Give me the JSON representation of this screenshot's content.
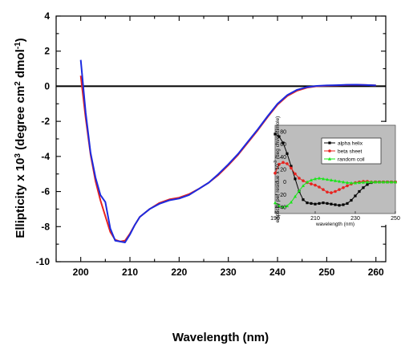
{
  "chart_data": [
    {
      "type": "line",
      "title": "",
      "xlabel": "Wavelength (nm)",
      "ylabel": {
        "prefix": "Ellipticity x 10",
        "exp": "3",
        "unit_open": " (degree cm",
        "unit_sq": "2",
        "unit_mid": " dmol",
        "unit_inv": "-1",
        "unit_close": ")"
      },
      "xlim": [
        195,
        262
      ],
      "ylim": [
        -10,
        4
      ],
      "xticks": [
        200,
        210,
        220,
        230,
        240,
        250,
        260
      ],
      "yticks": [
        4,
        2,
        0,
        -2,
        -4,
        -6,
        -8,
        -10
      ],
      "zero_line": true,
      "series": [
        {
          "color": "#e8231f",
          "x": [
            200,
            201,
            202,
            203,
            204,
            205,
            206,
            207,
            208,
            209,
            210,
            211,
            212,
            214,
            216,
            218,
            220,
            222,
            224,
            226,
            228,
            230,
            232,
            234,
            236,
            238,
            240,
            242,
            244,
            246,
            248,
            250,
            252,
            254,
            256,
            258,
            260
          ],
          "y": [
            0.6,
            -1.8,
            -3.9,
            -5.4,
            -6.5,
            -7.4,
            -8.3,
            -8.75,
            -8.85,
            -8.8,
            -8.4,
            -7.9,
            -7.45,
            -7.0,
            -6.65,
            -6.45,
            -6.35,
            -6.15,
            -5.85,
            -5.5,
            -5.05,
            -4.5,
            -3.9,
            -3.2,
            -2.5,
            -1.75,
            -1.05,
            -0.55,
            -0.25,
            -0.08,
            0.0,
            0.03,
            0.05,
            0.07,
            0.08,
            0.07,
            0.05
          ]
        },
        {
          "color": "#1c2be0",
          "x": [
            200,
            201,
            202,
            203,
            204,
            205,
            206,
            207,
            208,
            209,
            210,
            211,
            212,
            214,
            216,
            218,
            220,
            222,
            224,
            226,
            228,
            230,
            232,
            234,
            236,
            238,
            240,
            242,
            244,
            246,
            248,
            250,
            252,
            254,
            256,
            258,
            260
          ],
          "y": [
            1.5,
            -1.5,
            -3.8,
            -5.2,
            -6.2,
            -6.6,
            -8.1,
            -8.8,
            -8.85,
            -8.9,
            -8.45,
            -7.9,
            -7.45,
            -7.0,
            -6.7,
            -6.5,
            -6.4,
            -6.2,
            -5.85,
            -5.5,
            -5.0,
            -4.45,
            -3.85,
            -3.15,
            -2.45,
            -1.7,
            -1.0,
            -0.5,
            -0.2,
            -0.05,
            0.02,
            0.05,
            0.06,
            0.08,
            0.09,
            0.07,
            0.05
          ]
        }
      ]
    },
    {
      "type": "line",
      "title": "",
      "xlabel": "wavelength (nm)",
      "ylabel": {
        "prefix": "ellipticity per residue x 10",
        "exp": "-3",
        "unit": " (deg cm/decimole)"
      },
      "xlim": [
        190,
        250
      ],
      "ylim": [
        -50,
        90
      ],
      "xticks": [
        190,
        210,
        230,
        250
      ],
      "yticks": [
        80,
        60,
        40,
        20,
        0,
        -20,
        -40
      ],
      "background": "#bdbdbd",
      "legend_position": "top-right",
      "series": [
        {
          "name": "alpha helix",
          "color": "#000000",
          "marker": "square",
          "x": [
            190,
            192,
            194,
            196,
            198,
            200,
            202,
            204,
            206,
            208,
            210,
            212,
            214,
            216,
            218,
            220,
            222,
            224,
            226,
            228,
            230,
            232,
            234,
            236,
            238,
            240,
            242,
            244,
            246,
            248,
            250
          ],
          "y": [
            76,
            72,
            62,
            45,
            25,
            5,
            -15,
            -28,
            -33,
            -34,
            -35,
            -34,
            -33,
            -34,
            -35,
            -36,
            -37,
            -36,
            -34,
            -29,
            -22,
            -15,
            -9,
            -4,
            -1,
            0,
            0,
            0,
            0,
            0,
            0
          ]
        },
        {
          "name": "beta sheet",
          "color": "#e8231f",
          "marker": "circle",
          "x": [
            190,
            192,
            194,
            196,
            198,
            200,
            202,
            204,
            206,
            208,
            210,
            212,
            214,
            216,
            218,
            220,
            222,
            224,
            226,
            228,
            230,
            232,
            234,
            236,
            238,
            240,
            242,
            244,
            246,
            248,
            250
          ],
          "y": [
            14,
            28,
            31,
            29,
            22,
            13,
            6,
            2,
            -1,
            -3,
            -5,
            -8,
            -12,
            -16,
            -17,
            -15,
            -12,
            -9,
            -6,
            -3,
            -1,
            0,
            1,
            1,
            0,
            0,
            0,
            0,
            0,
            0,
            0
          ]
        },
        {
          "name": "random coil",
          "color": "#19e619",
          "marker": "triangle",
          "x": [
            190,
            192,
            194,
            196,
            198,
            200,
            202,
            204,
            206,
            208,
            210,
            212,
            214,
            216,
            218,
            220,
            222,
            224,
            226,
            228,
            230,
            232,
            234,
            236,
            238,
            240,
            242,
            244,
            246,
            248,
            250
          ],
          "y": [
            -33,
            -38,
            -40,
            -38,
            -32,
            -23,
            -14,
            -6,
            0,
            3,
            5,
            6,
            5,
            4,
            3,
            2,
            1,
            0,
            -1,
            -1.5,
            -1.5,
            -1,
            -0.5,
            0,
            0,
            0,
            0,
            0,
            0,
            0,
            0
          ]
        }
      ]
    }
  ]
}
